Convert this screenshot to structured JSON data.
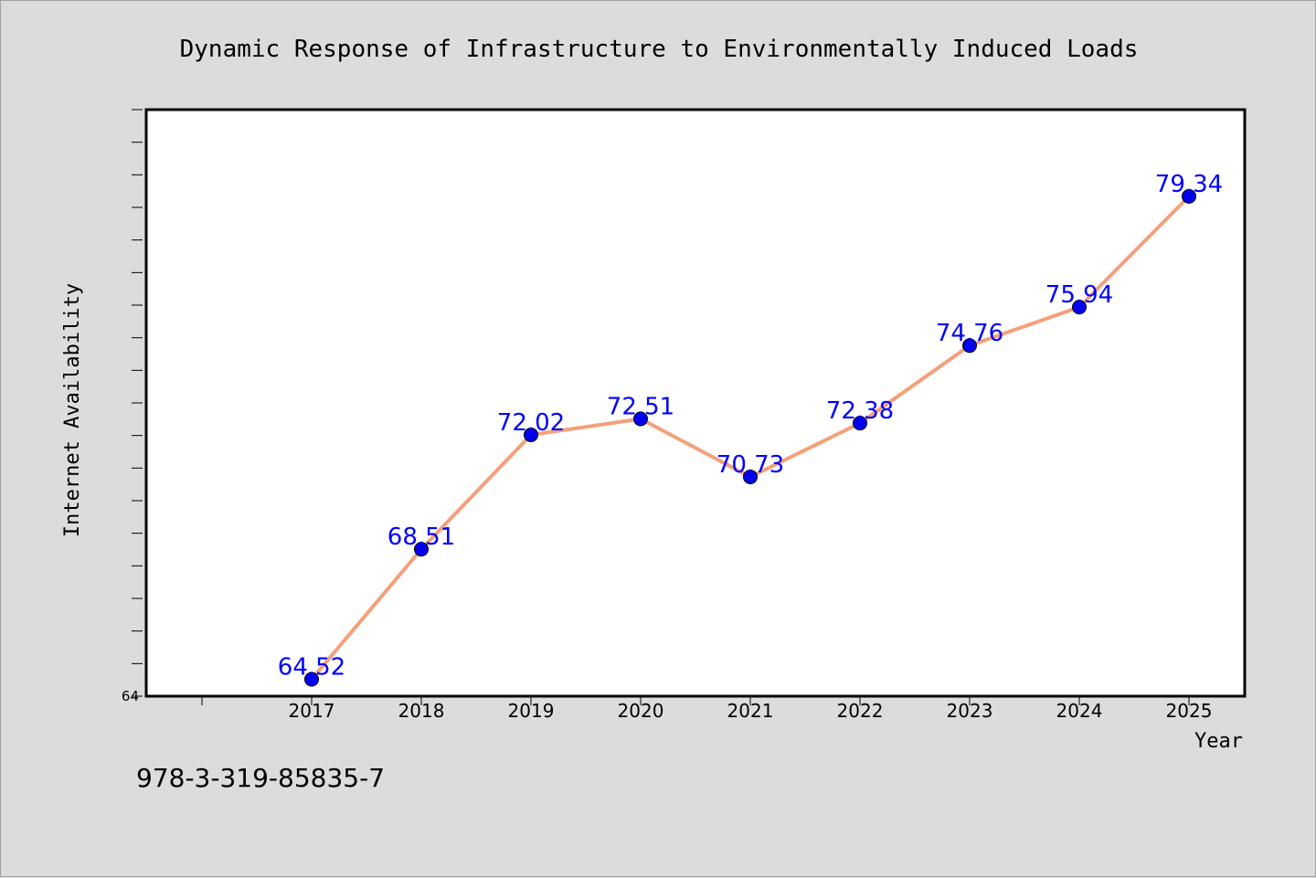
{
  "chart_data": {
    "type": "line",
    "title": "Dynamic Response of Infrastructure to Environmentally Induced Loads",
    "xlabel": "Year",
    "ylabel": "Internet Availability",
    "categories": [
      "2017",
      "2018",
      "2019",
      "2020",
      "2021",
      "2022",
      "2023",
      "2024",
      "2025"
    ],
    "values": [
      64.52,
      68.51,
      72.02,
      72.51,
      70.73,
      72.38,
      74.76,
      75.94,
      79.34
    ],
    "data_labels": [
      "64.52",
      "68.51",
      "72.02",
      "72.51",
      "70.73",
      "72.38",
      "74.76",
      "75.94",
      "79.34"
    ],
    "ylim": [
      64,
      82
    ],
    "y_tick_labels": [
      "64"
    ],
    "grid": false,
    "line_color": "#f4a07a",
    "marker_color": "#0000ee",
    "label_color": "#0000ff"
  },
  "footer": {
    "isbn": "978-3-319-85835-7"
  }
}
